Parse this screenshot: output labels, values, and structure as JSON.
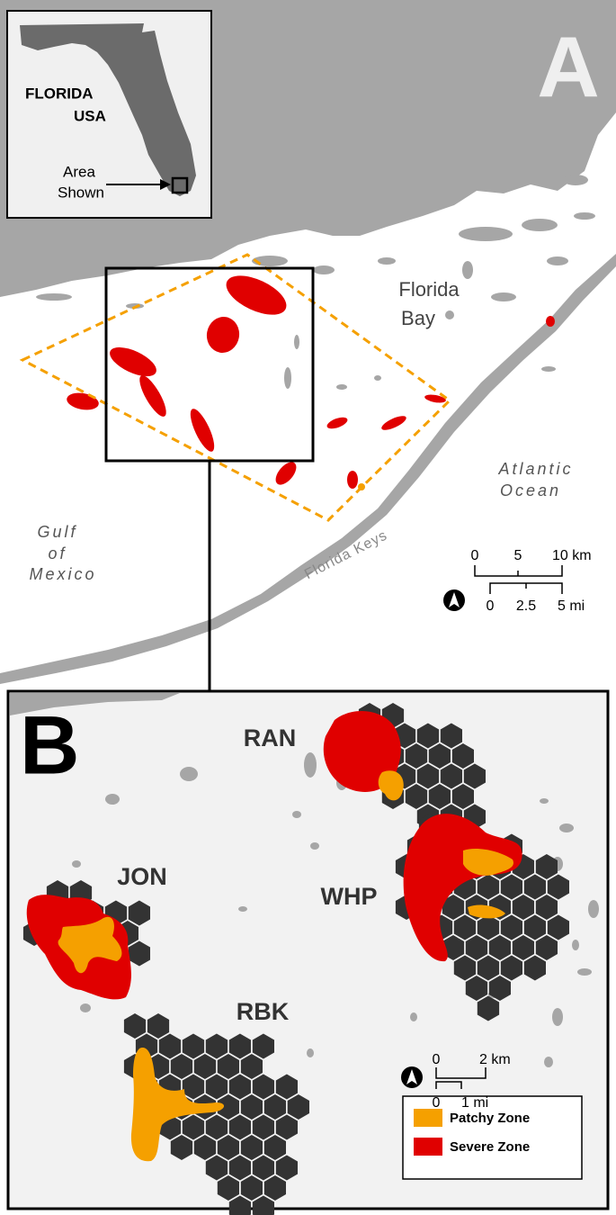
{
  "panel_a": {
    "label": "A",
    "inset": {
      "state": "FLORIDA",
      "country": "USA",
      "area_label": [
        "Area",
        "Shown"
      ]
    },
    "places": {
      "bay": [
        "Florida",
        "Bay"
      ],
      "ocean": [
        "Atlantic",
        "Ocean"
      ],
      "gulf": [
        "Gulf",
        "of",
        "Mexico"
      ],
      "keys": "Florida Keys"
    },
    "scale_km": [
      "0",
      "5",
      "10 km"
    ],
    "scale_mi": [
      "0",
      "2.5",
      "5 mi"
    ]
  },
  "panel_b": {
    "label": "B",
    "sites": [
      "RAN",
      "JON",
      "WHP",
      "RBK"
    ],
    "scale_km": [
      "0",
      "2 km"
    ],
    "scale_mi": [
      "0",
      "1 mi"
    ],
    "legend": [
      {
        "label": "Patchy Zone",
        "color": "#f5a000"
      },
      {
        "label": "Severe Zone",
        "color": "#e00000"
      }
    ]
  }
}
